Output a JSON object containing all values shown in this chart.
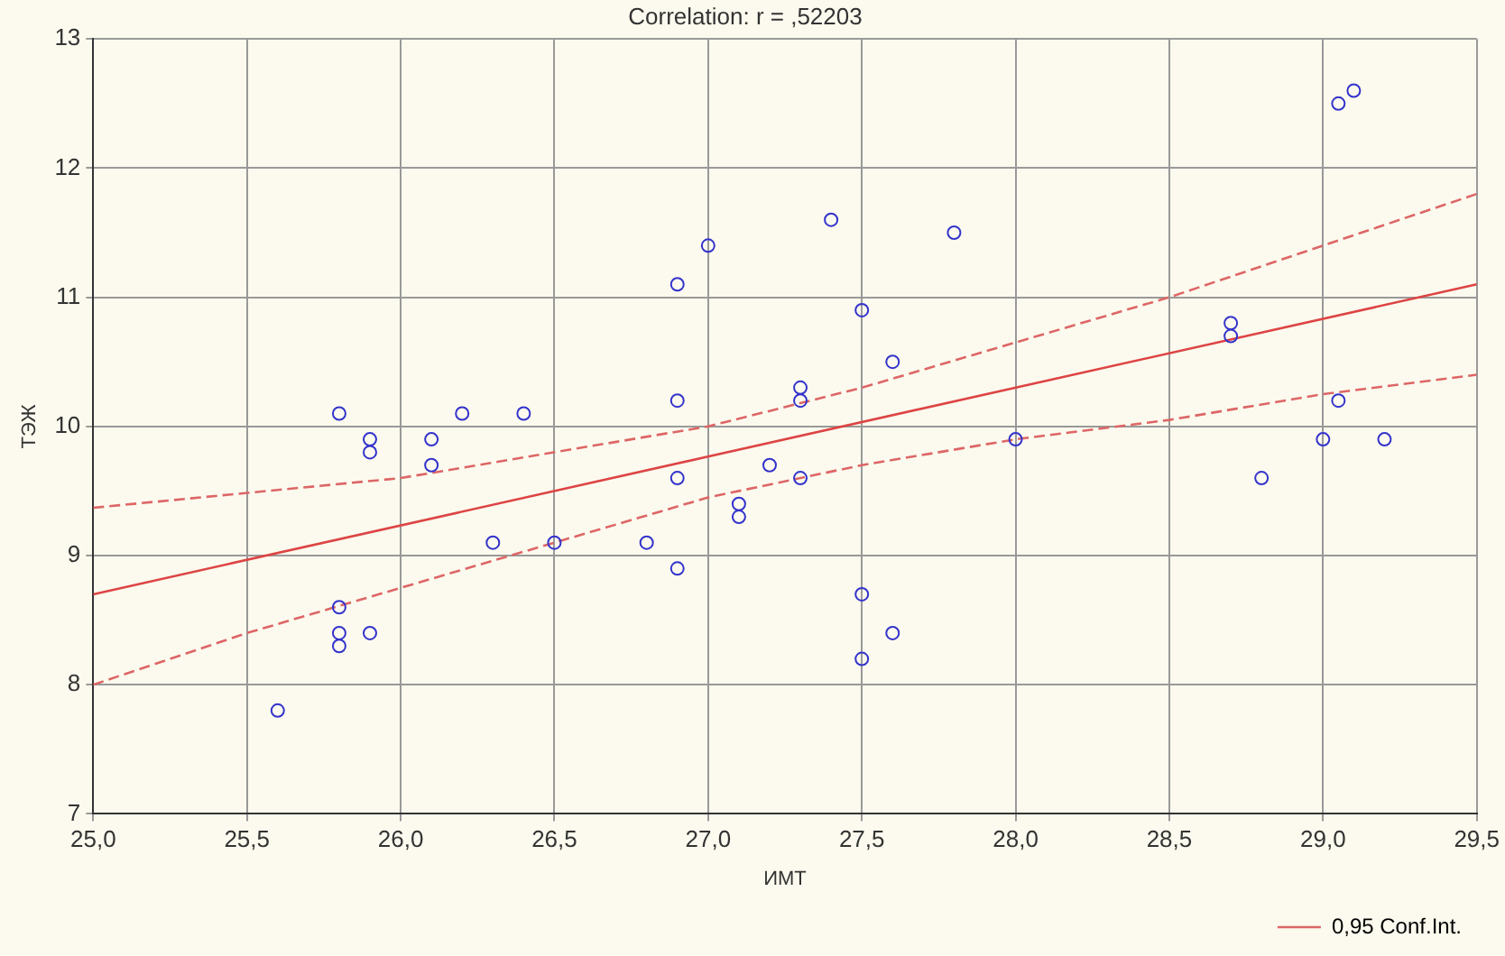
{
  "chart_data": {
    "type": "scatter",
    "title": "Correlation: r = ,52203",
    "xlabel": "ИМТ",
    "ylabel": "ТЭЖ",
    "xlim": [
      25,
      29.5
    ],
    "ylim": [
      7,
      13
    ],
    "xticks": [
      {
        "value": 25,
        "label": "25,0"
      },
      {
        "value": 25.5,
        "label": "25,5"
      },
      {
        "value": 26,
        "label": "26,0"
      },
      {
        "value": 26.5,
        "label": "26,5"
      },
      {
        "value": 27,
        "label": "27,0"
      },
      {
        "value": 27.5,
        "label": "27,5"
      },
      {
        "value": 28,
        "label": "28,0"
      },
      {
        "value": 28.5,
        "label": "28,5"
      },
      {
        "value": 29,
        "label": "29,0"
      },
      {
        "value": 29.5,
        "label": "29,5"
      }
    ],
    "yticks": [
      7,
      8,
      9,
      10,
      11,
      12,
      13
    ],
    "grid": true,
    "legend": "bottom right",
    "series": [
      {
        "color": "#3333cc",
        "marker": "circle",
        "x": [
          25.6,
          25.8,
          25.8,
          25.8,
          25.8,
          25.9,
          25.9,
          25.9,
          26.1,
          26.1,
          26.2,
          26.3,
          26.4,
          26.5,
          26.8,
          26.9,
          26.9,
          26.9,
          26.9,
          27.0,
          27.1,
          27.1,
          27.2,
          27.3,
          27.3,
          27.3,
          27.4,
          27.5,
          27.5,
          27.5,
          27.6,
          27.6,
          27.8,
          28.0,
          28.7,
          28.7,
          28.8,
          29.0,
          29.05,
          29.05,
          29.1,
          29.2
        ],
        "values": [
          7.8,
          10.1,
          8.6,
          8.4,
          8.3,
          9.9,
          9.8,
          8.4,
          9.9,
          9.7,
          10.1,
          9.1,
          10.1,
          9.1,
          9.1,
          11.1,
          10.2,
          9.6,
          8.9,
          11.4,
          9.4,
          9.3,
          9.7,
          10.3,
          10.2,
          9.6,
          11.6,
          10.9,
          8.7,
          8.2,
          10.5,
          8.4,
          11.5,
          9.9,
          10.8,
          10.7,
          9.6,
          9.9,
          10.2,
          12.5,
          12.6,
          9.9
        ]
      },
      {
        "type": "line",
        "color": "#dd4444",
        "marker": "none",
        "line_style": "solid",
        "x": [
          25,
          29.5
        ],
        "values": [
          8.7,
          11.1
        ]
      },
      {
        "type": "line",
        "name": "0,95 Conf.Int.",
        "color": "#dd6666",
        "marker": "none",
        "line_style": "dashed",
        "x": [
          25,
          26,
          27,
          27.5,
          28,
          28.5,
          29,
          29.5
        ],
        "values": [
          9.37,
          9.6,
          10.0,
          10.3,
          10.65,
          11.0,
          11.4,
          11.8
        ]
      },
      {
        "type": "line",
        "color": "#dd6666",
        "marker": "none",
        "line_style": "dashed",
        "x": [
          25,
          25.5,
          26,
          26.5,
          27,
          27.5,
          28,
          28.5,
          29,
          29.5
        ],
        "values": [
          8.0,
          8.4,
          8.75,
          9.1,
          9.45,
          9.7,
          9.9,
          10.05,
          10.25,
          10.4
        ]
      }
    ]
  }
}
